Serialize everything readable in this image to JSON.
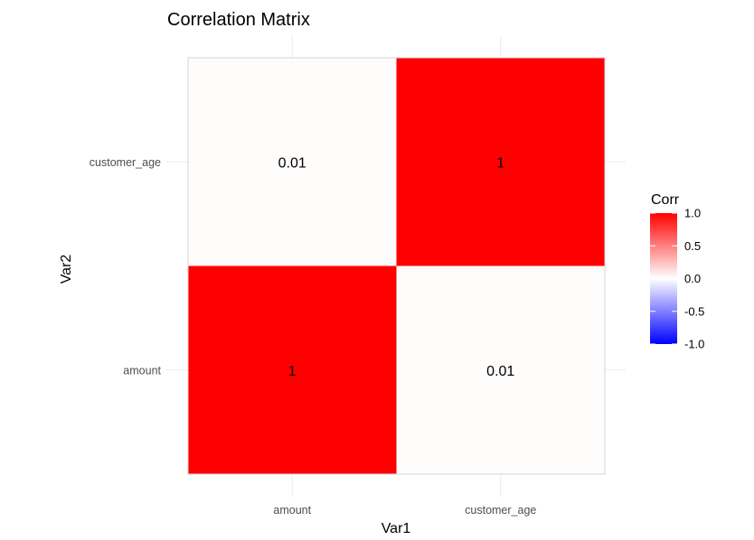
{
  "chart_data": {
    "type": "heatmap",
    "title": "Correlation Matrix",
    "xlabel": "Var1",
    "ylabel": "Var2",
    "x_categories": [
      "amount",
      "customer_age"
    ],
    "y_categories": [
      "amount",
      "customer_age"
    ],
    "cells": [
      {
        "x": "amount",
        "y": "amount",
        "value": 1,
        "label": "1"
      },
      {
        "x": "customer_age",
        "y": "amount",
        "value": 0.01,
        "label": "0.01"
      },
      {
        "x": "amount",
        "y": "customer_age",
        "value": 0.01,
        "label": "0.01"
      },
      {
        "x": "customer_age",
        "y": "customer_age",
        "value": 1,
        "label": "1"
      }
    ],
    "legend": {
      "title": "Corr",
      "position": "right",
      "range": [
        -1,
        1
      ],
      "ticks": [
        1.0,
        0.5,
        0.0,
        -0.5,
        -1.0
      ],
      "tick_labels": [
        "1.0",
        "0.5",
        "0.0",
        "-0.5",
        "-1.0"
      ],
      "colors": {
        "low": "#0000ff",
        "mid": "#ffffff",
        "high": "#ff0000"
      }
    },
    "grid": true
  }
}
